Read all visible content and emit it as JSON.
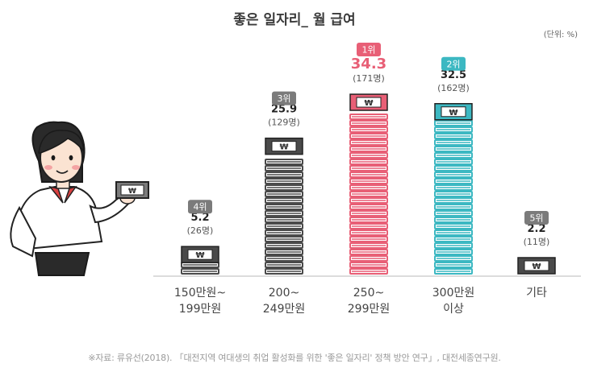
{
  "title": "좋은 일자리_ 월 급여",
  "unit_label": "(단위: %)",
  "source": "※자료: 류유선(2018). 「대전지역 여대생의 취업 활성화를 위한 '좋은 일자리' 정책 방안 연구」, 대전세종연구원.",
  "chart_data": {
    "type": "bar",
    "title": "좋은 일자리_ 월 급여",
    "unit": "(단위: %)",
    "categories": [
      [
        "150만원~",
        "199만원"
      ],
      [
        "200~",
        "249만원"
      ],
      [
        "250~",
        "299만원"
      ],
      [
        "300만원",
        "이상"
      ],
      [
        "기타"
      ]
    ],
    "values": [
      5.2,
      25.9,
      34.3,
      32.5,
      2.2
    ],
    "values_text": [
      "5.2",
      "25.9",
      "34.3",
      "32.5",
      "2.2"
    ],
    "counts_text": [
      "(26명)",
      "(129명)",
      "(171명)",
      "(162명)",
      "(11명)"
    ],
    "ranks": [
      "4위",
      "3위",
      "1위",
      "2위",
      "5위"
    ],
    "currency_symbol": "₩",
    "ylim": [
      0,
      40
    ],
    "colors": {
      "default": "#4a4a4a",
      "rank1": "#e85f76",
      "rank2": "#3cb8c2",
      "rank_badge_default": "#7b7b7b",
      "value_text_default": "#222222"
    },
    "highlight": {
      "2": "rank1",
      "3": "rank2"
    }
  }
}
